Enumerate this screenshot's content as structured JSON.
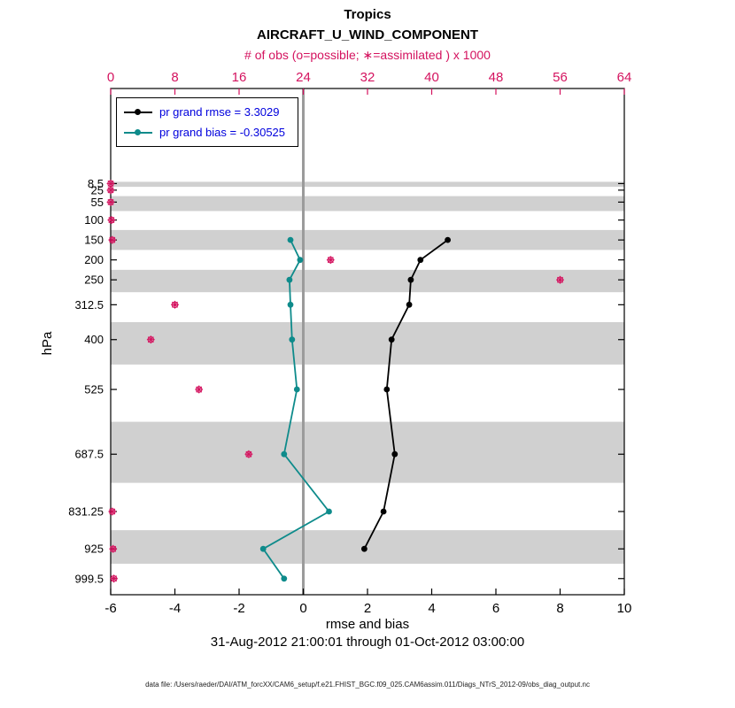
{
  "figure": {
    "region_title": "Tropics",
    "variable_title": "AIRCRAFT_U_WIND_COMPONENT",
    "datafile_note": "data file: /Users/raeder/DAI/ATM_forcXX/CAM6_setup/f.e21.FHIST_BGC.f09_025.CAM6assim.011/Diags_NTrS_2012-09/obs_diag_output.nc"
  },
  "colors": {
    "obs_pink": "#d4135f",
    "bias_teal": "#0e8b8b",
    "rmse_black": "#000000",
    "legend_text_blue": "#0000dd",
    "band_gray": "#d0d0d0",
    "zero_line_gray": "#9b9b9b"
  },
  "chart_data": {
    "type": "line",
    "title": "Tropics",
    "subtitle": "AIRCRAFT_U_WIND_COMPONENT",
    "top_axis_title": "# of obs (o=possible; ∗=assimilated ) x 1000",
    "timespan": "31-Aug-2012 21:00:01 through 01-Oct-2012 03:00:00",
    "x_axis": {
      "label": "rmse and bias",
      "lim": [
        -6,
        10
      ],
      "ticks": [
        -6,
        -4,
        -2,
        0,
        2,
        4,
        6,
        8,
        10
      ]
    },
    "top_axis": {
      "ticks": [
        0,
        8,
        16,
        24,
        32,
        40,
        48,
        56,
        64
      ],
      "scale_note": "count_thousands = (x_bottom + 6) * 4"
    },
    "y_axis": {
      "label": "hPa",
      "lim": [
        -230,
        1040
      ],
      "ticks": [
        8.5,
        25,
        55,
        100,
        150,
        200,
        250,
        312.5,
        400,
        525,
        687.5,
        831.25,
        925,
        999.5
      ]
    },
    "zero_line_x": 0,
    "shaded_pressure_bands": [
      [
        4,
        16.75
      ],
      [
        40,
        77.5
      ],
      [
        125,
        175
      ],
      [
        225,
        281.25
      ],
      [
        356.25,
        462.5
      ],
      [
        606.25,
        759.375
      ],
      [
        878.125,
        962.25
      ]
    ],
    "series": [
      {
        "name": "pr grand rmse = 3.3029",
        "color": "#000000",
        "marker": "filled-circle",
        "levels": [
          150,
          200,
          250,
          312.5,
          400,
          525,
          687.5,
          831.25,
          925
        ],
        "values": [
          4.5,
          3.65,
          3.35,
          3.3,
          2.75,
          2.6,
          2.85,
          2.5,
          1.9
        ]
      },
      {
        "name": "pr grand bias = -0.30525",
        "color": "#0e8b8b",
        "marker": "filled-circle",
        "levels": [
          150,
          200,
          250,
          312.5,
          400,
          525,
          687.5,
          831.25,
          925,
          999.5
        ],
        "values": [
          -0.4,
          -0.1,
          -0.43,
          -0.4,
          -0.35,
          -0.2,
          -0.6,
          0.8,
          -1.25,
          -0.6
        ]
      }
    ],
    "obs_counts": {
      "markers": [
        "circle-possible",
        "asterisk-assimilated"
      ],
      "levels": [
        8.5,
        25,
        55,
        100,
        150,
        200,
        250,
        312.5,
        400,
        525,
        687.5,
        831.25,
        925,
        999.5
      ],
      "counts_thousands": [
        0,
        0,
        0,
        0.1,
        0.2,
        27.4,
        56,
        8,
        5,
        11,
        17.2,
        0.2,
        0.3,
        0.4
      ]
    }
  }
}
